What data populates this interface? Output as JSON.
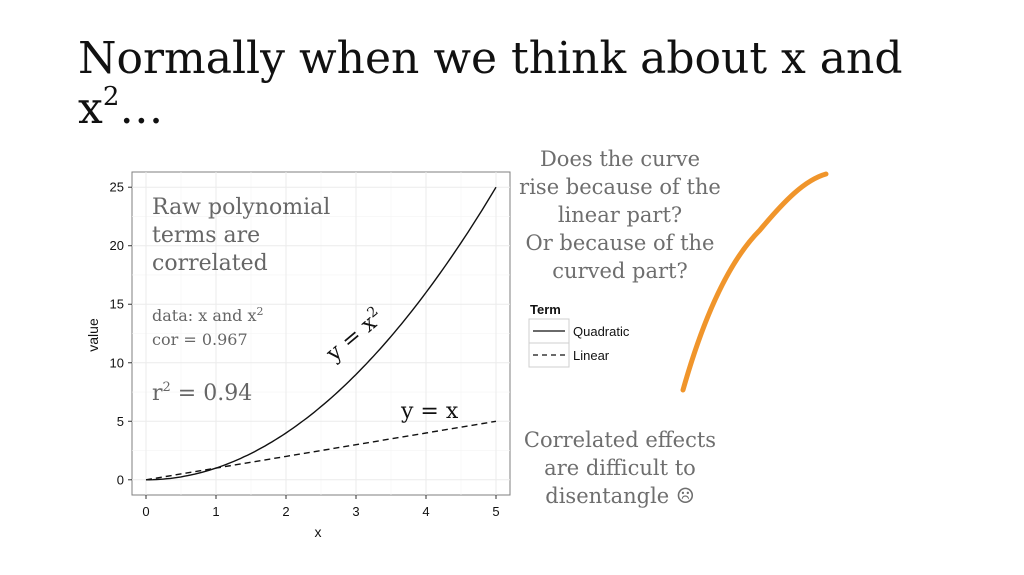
{
  "slide": {
    "title_main": "Normally when we think about x and x",
    "title_sup": "2",
    "title_tail": "…",
    "question": "Does the curve\nrise because of the\nlinear part?\nOr because of the\ncurved part?",
    "conclusion": "Correlated effects\nare difficult to\ndisentangle ☹",
    "accent_color": "#f0952b"
  },
  "chart_data": {
    "type": "line",
    "xlabel": "x",
    "ylabel": "value",
    "xlim": [
      -0.2,
      5.2
    ],
    "ylim": [
      -1.3,
      26.3
    ],
    "x_ticks": [
      0,
      1,
      2,
      3,
      4,
      5
    ],
    "y_ticks": [
      0,
      5,
      10,
      15,
      20,
      25
    ],
    "grid": true,
    "legend": {
      "title": "Term",
      "placement": "right",
      "entries": [
        {
          "name": "Quadratic",
          "linestyle": "solid"
        },
        {
          "name": "Linear",
          "linestyle": "dashed"
        }
      ]
    },
    "series": [
      {
        "name": "Quadratic",
        "linestyle": "solid",
        "x": [
          0,
          0.5,
          1,
          1.5,
          2,
          2.5,
          3,
          3.5,
          4,
          4.5,
          5
        ],
        "values": [
          0,
          0.25,
          1,
          2.25,
          4,
          6.25,
          9,
          12.25,
          16,
          20.25,
          25
        ]
      },
      {
        "name": "Linear",
        "linestyle": "dashed",
        "x": [
          0,
          1,
          2,
          3,
          4,
          5
        ],
        "values": [
          0,
          1,
          2,
          3,
          4,
          5
        ]
      }
    ],
    "annotations": {
      "heading": "Raw polynomial\nterms are\ncorrelated",
      "data_label": "data:  x and x",
      "data_sup": "2",
      "cor_label": "cor  = 0.967",
      "r2_label": "r",
      "r2_sup": "2",
      "r2_value": " = 0.94",
      "quad_label": "y = x",
      "quad_sup": "2",
      "linear_label": "y = x"
    }
  }
}
